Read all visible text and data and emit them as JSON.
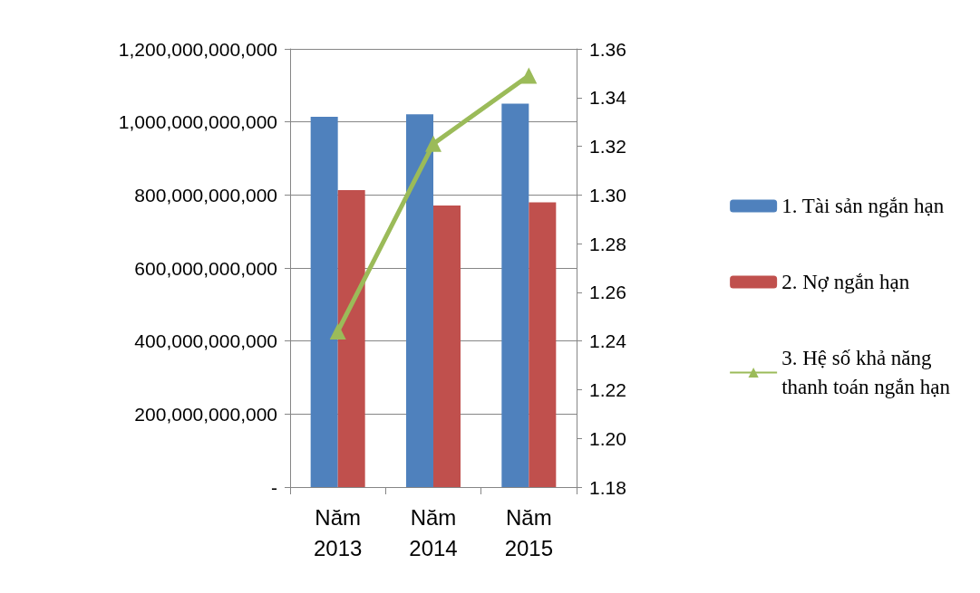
{
  "chart_data": {
    "type": "bar",
    "categories": [
      "Năm\n2013",
      "Năm\n2014",
      "Năm\n2015"
    ],
    "series": [
      {
        "name": "1. Tài sản ngắn hạn",
        "color": "#4f81bd",
        "values": [
          1014000000000,
          1021000000000,
          1050000000000
        ]
      },
      {
        "name": "2. Nợ ngắn hạn",
        "color": "#c0504d",
        "values": [
          813000000000,
          771000000000,
          780000000000
        ]
      },
      {
        "name": "3. Hệ số khả năng\nthanh toán ngắn hạn",
        "type": "line",
        "axis": "y2",
        "color": "#9bbb59",
        "marker": "triangle",
        "values": [
          1.244,
          1.321,
          1.349
        ]
      }
    ],
    "ylim": [
      0,
      1200000000000
    ],
    "yticks": [
      {
        "value": 0,
        "label": "-"
      },
      {
        "value": 200000000000,
        "label": "200,000,000,000"
      },
      {
        "value": 400000000000,
        "label": "400,000,000,000"
      },
      {
        "value": 600000000000,
        "label": "600,000,000,000"
      },
      {
        "value": 800000000000,
        "label": "800,000,000,000"
      },
      {
        "value": 1000000000000,
        "label": "1,000,000,000,000"
      },
      {
        "value": 1200000000000,
        "label": "1,200,000,000,000"
      }
    ],
    "y2lim": [
      1.18,
      1.36
    ],
    "y2ticks": [
      {
        "value": 1.18,
        "label": "1.18"
      },
      {
        "value": 1.2,
        "label": "1.20"
      },
      {
        "value": 1.22,
        "label": "1.22"
      },
      {
        "value": 1.24,
        "label": "1.24"
      },
      {
        "value": 1.26,
        "label": "1.26"
      },
      {
        "value": 1.28,
        "label": "1.28"
      },
      {
        "value": 1.3,
        "label": "1.30"
      },
      {
        "value": 1.32,
        "label": "1.32"
      },
      {
        "value": 1.34,
        "label": "1.34"
      },
      {
        "value": 1.36,
        "label": "1.36"
      }
    ],
    "grid": "y",
    "legend": "right"
  }
}
